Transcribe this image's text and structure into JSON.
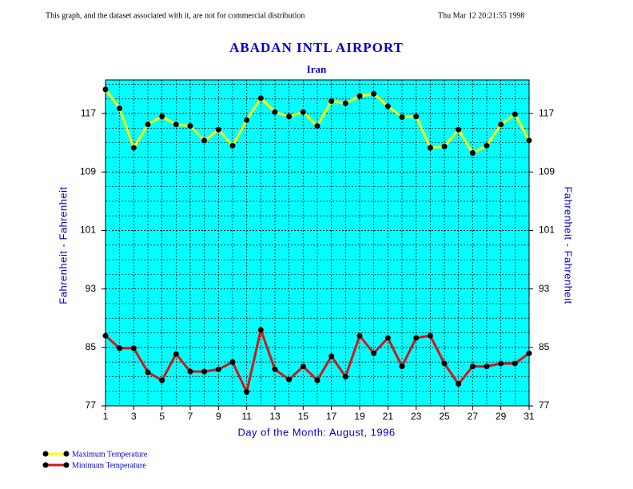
{
  "header": {
    "left": "This graph, and the dataset associated with it, are not for commercial distribution",
    "right": "Thu Mar 12 20:21:55 1998"
  },
  "chart_data": {
    "type": "line",
    "title": "ABADAN INTL AIRPORT",
    "subtitle": "Iran",
    "x_label": "Day of the Month:  August, 1996",
    "y_label": "Fahrenheit - Fahrenheit",
    "y2_label": "Fahrenheit - Fahrenheit",
    "x": [
      1,
      2,
      3,
      4,
      5,
      6,
      7,
      8,
      9,
      10,
      11,
      12,
      13,
      14,
      15,
      16,
      17,
      18,
      19,
      20,
      21,
      22,
      23,
      24,
      25,
      26,
      27,
      28,
      29,
      30,
      31
    ],
    "series": [
      {
        "name": "Maximum Temperature",
        "color": "#ffff00",
        "values": [
          120.3,
          117.7,
          112.3,
          115.5,
          116.6,
          115.5,
          115.3,
          113.3,
          114.8,
          112.6,
          116.1,
          119.1,
          117.2,
          116.6,
          117.2,
          115.3,
          118.7,
          118.4,
          119.4,
          119.7,
          118,
          116.5,
          116.6,
          112.3,
          112.5,
          114.8,
          111.6,
          112.6,
          115.5,
          116.9,
          113.3
        ]
      },
      {
        "name": "Minimum Temperature",
        "color": "#d01818",
        "values": [
          86.6,
          84.9,
          84.9,
          81.6,
          80.5,
          84.1,
          81.7,
          81.7,
          82,
          83,
          78.9,
          87.4,
          82,
          80.6,
          82.4,
          80.5,
          83.8,
          81,
          86.6,
          84.2,
          86.3,
          82.4,
          86.3,
          86.6,
          82.8,
          80,
          82.4,
          82.4,
          82.8,
          82.8,
          84.2
        ]
      }
    ],
    "xlim": [
      1,
      31
    ],
    "xticks": [
      1,
      3,
      5,
      7,
      9,
      11,
      13,
      15,
      17,
      19,
      21,
      23,
      25,
      27,
      29,
      31
    ],
    "ylim": [
      77,
      121.6
    ],
    "yticks": [
      77,
      85,
      93,
      101,
      109,
      117
    ],
    "y2lim": [
      77,
      121.6
    ],
    "y2ticks": [
      77,
      85,
      93,
      101,
      109,
      117
    ],
    "grid": true,
    "plot_background": "#00ffff",
    "marker_color": "#000000"
  }
}
